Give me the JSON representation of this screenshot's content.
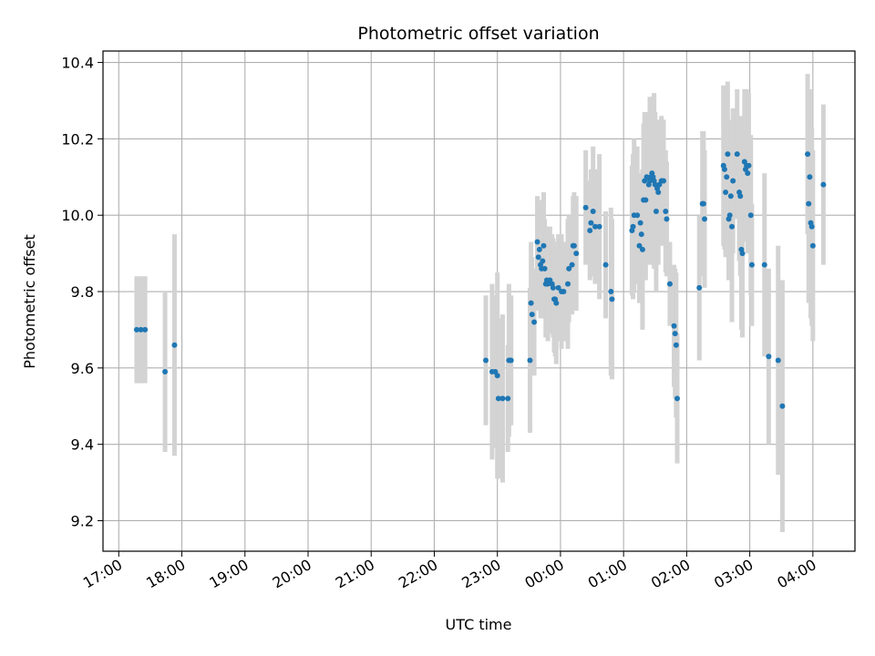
{
  "chart_data": {
    "type": "scatter",
    "title": "Photometric offset variation",
    "xlabel": "UTC time",
    "ylabel": "Photometric offset",
    "x_axis_type": "time",
    "x_ticks": [
      "17:00",
      "18:00",
      "19:00",
      "20:00",
      "21:00",
      "22:00",
      "23:00",
      "00:00",
      "01:00",
      "02:00",
      "03:00",
      "04:00"
    ],
    "y_ticks": [
      "9.2",
      "9.4",
      "9.6",
      "9.8",
      "10.0",
      "10.2",
      "10.4"
    ],
    "xlim": [
      "16:45",
      "04:40"
    ],
    "ylim": [
      9.12,
      10.43
    ],
    "grid": true,
    "colors": {
      "marker": "#1f77b4",
      "errorbar": "#d3d3d3",
      "grid": "#b0b0b0"
    },
    "series": [
      {
        "points": [
          {
            "t": "17:17",
            "y": 9.7,
            "err": 0.14
          },
          {
            "t": "17:21",
            "y": 9.7,
            "err": 0.14
          },
          {
            "t": "17:25",
            "y": 9.7,
            "err": 0.14
          },
          {
            "t": "17:44",
            "y": 9.59,
            "err": 0.21
          },
          {
            "t": "17:53",
            "y": 9.66,
            "err": 0.29
          },
          {
            "t": "22:49",
            "y": 9.62,
            "err": 0.17
          },
          {
            "t": "22:55",
            "y": 9.59,
            "err": 0.23
          },
          {
            "t": "22:58",
            "y": 9.59,
            "err": 0.2
          },
          {
            "t": "23:00",
            "y": 9.58,
            "err": 0.27
          },
          {
            "t": "23:01",
            "y": 9.52,
            "err": 0.21
          },
          {
            "t": "23:05",
            "y": 9.52,
            "err": 0.22
          },
          {
            "t": "23:10",
            "y": 9.52,
            "err": 0.14
          },
          {
            "t": "23:11",
            "y": 9.62,
            "err": 0.2
          },
          {
            "t": "23:13",
            "y": 9.62,
            "err": 0.17
          },
          {
            "t": "23:31",
            "y": 9.62,
            "err": 0.19
          },
          {
            "t": "23:32",
            "y": 9.77,
            "err": 0.16
          },
          {
            "t": "23:33",
            "y": 9.74,
            "err": 0.15
          },
          {
            "t": "23:35",
            "y": 9.72,
            "err": 0.14
          },
          {
            "t": "23:38",
            "y": 9.93,
            "err": 0.12
          },
          {
            "t": "23:39",
            "y": 9.89,
            "err": 0.14
          },
          {
            "t": "23:40",
            "y": 9.91,
            "err": 0.13
          },
          {
            "t": "23:41",
            "y": 9.87,
            "err": 0.14
          },
          {
            "t": "23:42",
            "y": 9.86,
            "err": 0.13
          },
          {
            "t": "23:43",
            "y": 9.88,
            "err": 0.15
          },
          {
            "t": "23:44",
            "y": 9.92,
            "err": 0.14
          },
          {
            "t": "23:45",
            "y": 9.86,
            "err": 0.13
          },
          {
            "t": "23:46",
            "y": 9.82,
            "err": 0.14
          },
          {
            "t": "23:47",
            "y": 9.83,
            "err": 0.12
          },
          {
            "t": "23:48",
            "y": 9.82,
            "err": 0.15
          },
          {
            "t": "23:50",
            "y": 9.83,
            "err": 0.14
          },
          {
            "t": "23:52",
            "y": 9.82,
            "err": 0.13
          },
          {
            "t": "23:53",
            "y": 9.81,
            "err": 0.13
          },
          {
            "t": "23:54",
            "y": 9.78,
            "err": 0.14
          },
          {
            "t": "23:55",
            "y": 9.78,
            "err": 0.15
          },
          {
            "t": "23:56",
            "y": 9.77,
            "err": 0.16
          },
          {
            "t": "23:58",
            "y": 9.81,
            "err": 0.14
          },
          {
            "t": "00:01",
            "y": 9.8,
            "err": 0.15
          },
          {
            "t": "00:03",
            "y": 9.8,
            "err": 0.13
          },
          {
            "t": "00:07",
            "y": 9.82,
            "err": 0.17
          },
          {
            "t": "00:08",
            "y": 9.86,
            "err": 0.14
          },
          {
            "t": "00:11",
            "y": 9.87,
            "err": 0.13
          },
          {
            "t": "00:12",
            "y": 9.92,
            "err": 0.13
          },
          {
            "t": "00:13",
            "y": 9.92,
            "err": 0.14
          },
          {
            "t": "00:15",
            "y": 9.9,
            "err": 0.15
          },
          {
            "t": "00:24",
            "y": 10.02,
            "err": 0.15
          },
          {
            "t": "00:28",
            "y": 9.96,
            "err": 0.13
          },
          {
            "t": "00:29",
            "y": 9.98,
            "err": 0.14
          },
          {
            "t": "00:31",
            "y": 10.01,
            "err": 0.17
          },
          {
            "t": "00:33",
            "y": 9.97,
            "err": 0.15
          },
          {
            "t": "00:37",
            "y": 9.97,
            "err": 0.19
          },
          {
            "t": "00:43",
            "y": 9.87,
            "err": 0.14
          },
          {
            "t": "00:48",
            "y": 9.8,
            "err": 0.22
          },
          {
            "t": "00:49",
            "y": 9.78,
            "err": 0.21
          },
          {
            "t": "01:08",
            "y": 9.96,
            "err": 0.17
          },
          {
            "t": "01:09",
            "y": 9.97,
            "err": 0.19
          },
          {
            "t": "01:10",
            "y": 10.0,
            "err": 0.2
          },
          {
            "t": "01:13",
            "y": 10.0,
            "err": 0.18
          },
          {
            "t": "01:15",
            "y": 9.92,
            "err": 0.15
          },
          {
            "t": "01:16",
            "y": 9.98,
            "err": 0.13
          },
          {
            "t": "01:17",
            "y": 9.95,
            "err": 0.16
          },
          {
            "t": "01:18",
            "y": 9.91,
            "err": 0.21
          },
          {
            "t": "01:19",
            "y": 10.04,
            "err": 0.2
          },
          {
            "t": "01:20",
            "y": 10.09,
            "err": 0.18
          },
          {
            "t": "01:21",
            "y": 10.04,
            "err": 0.21
          },
          {
            "t": "01:22",
            "y": 10.1,
            "err": 0.17
          },
          {
            "t": "01:24",
            "y": 10.08,
            "err": 0.18
          },
          {
            "t": "01:25",
            "y": 10.09,
            "err": 0.22
          },
          {
            "t": "01:26",
            "y": 10.1,
            "err": 0.2
          },
          {
            "t": "01:27",
            "y": 10.11,
            "err": 0.2
          },
          {
            "t": "01:28",
            "y": 10.1,
            "err": 0.21
          },
          {
            "t": "01:29",
            "y": 10.09,
            "err": 0.23
          },
          {
            "t": "01:30",
            "y": 10.08,
            "err": 0.19
          },
          {
            "t": "01:31",
            "y": 10.01,
            "err": 0.21
          },
          {
            "t": "01:32",
            "y": 10.07,
            "err": 0.17
          },
          {
            "t": "01:33",
            "y": 10.06,
            "err": 0.19
          },
          {
            "t": "01:34",
            "y": 10.08,
            "err": 0.16
          },
          {
            "t": "01:36",
            "y": 10.09,
            "err": 0.17
          },
          {
            "t": "01:38",
            "y": 10.09,
            "err": 0.16
          },
          {
            "t": "01:40",
            "y": 10.01,
            "err": 0.16
          },
          {
            "t": "01:41",
            "y": 9.99,
            "err": 0.15
          },
          {
            "t": "01:44",
            "y": 9.82,
            "err": 0.11
          },
          {
            "t": "01:48",
            "y": 9.71,
            "err": 0.16
          },
          {
            "t": "01:49",
            "y": 9.69,
            "err": 0.17
          },
          {
            "t": "01:50",
            "y": 9.66,
            "err": 0.19
          },
          {
            "t": "01:51",
            "y": 9.52,
            "err": 0.17
          },
          {
            "t": "02:12",
            "y": 9.81,
            "err": 0.19
          },
          {
            "t": "02:15",
            "y": 10.03,
            "err": 0.19
          },
          {
            "t": "02:16",
            "y": 10.03,
            "err": 0.19
          },
          {
            "t": "02:17",
            "y": 9.99,
            "err": 0.18
          },
          {
            "t": "02:35",
            "y": 10.13,
            "err": 0.21
          },
          {
            "t": "02:36",
            "y": 10.12,
            "err": 0.21
          },
          {
            "t": "02:37",
            "y": 10.06,
            "err": 0.17
          },
          {
            "t": "02:38",
            "y": 10.1,
            "err": 0.2
          },
          {
            "t": "02:39",
            "y": 10.16,
            "err": 0.19
          },
          {
            "t": "02:40",
            "y": 9.99,
            "err": 0.16
          },
          {
            "t": "02:41",
            "y": 10.0,
            "err": 0.16
          },
          {
            "t": "02:42",
            "y": 10.05,
            "err": 0.2
          },
          {
            "t": "02:43",
            "y": 9.97,
            "err": 0.25
          },
          {
            "t": "02:44",
            "y": 10.09,
            "err": 0.19
          },
          {
            "t": "02:48",
            "y": 10.16,
            "err": 0.17
          },
          {
            "t": "02:50",
            "y": 10.06,
            "err": 0.18
          },
          {
            "t": "02:51",
            "y": 10.05,
            "err": 0.21
          },
          {
            "t": "02:52",
            "y": 9.91,
            "err": 0.21
          },
          {
            "t": "02:53",
            "y": 9.9,
            "err": 0.22
          },
          {
            "t": "02:55",
            "y": 10.14,
            "err": 0.19
          },
          {
            "t": "02:56",
            "y": 10.12,
            "err": 0.18
          },
          {
            "t": "02:57",
            "y": 10.13,
            "err": 0.2
          },
          {
            "t": "02:58",
            "y": 10.11,
            "err": 0.21
          },
          {
            "t": "02:59",
            "y": 10.13,
            "err": 0.19
          },
          {
            "t": "03:01",
            "y": 10.0,
            "err": 0.21
          },
          {
            "t": "03:02",
            "y": 9.87,
            "err": 0.16
          },
          {
            "t": "03:14",
            "y": 9.87,
            "err": 0.24
          },
          {
            "t": "03:18",
            "y": 9.63,
            "err": 0.23
          },
          {
            "t": "03:27",
            "y": 9.62,
            "err": 0.3
          },
          {
            "t": "03:31",
            "y": 9.5,
            "err": 0.33
          },
          {
            "t": "03:55",
            "y": 10.16,
            "err": 0.21
          },
          {
            "t": "03:56",
            "y": 10.03,
            "err": 0.26
          },
          {
            "t": "03:57",
            "y": 10.1,
            "err": 0.23
          },
          {
            "t": "03:58",
            "y": 9.98,
            "err": 0.25
          },
          {
            "t": "03:59",
            "y": 9.97,
            "err": 0.26
          },
          {
            "t": "04:00",
            "y": 9.92,
            "err": 0.25
          },
          {
            "t": "04:10",
            "y": 10.08,
            "err": 0.21
          }
        ]
      }
    ]
  }
}
